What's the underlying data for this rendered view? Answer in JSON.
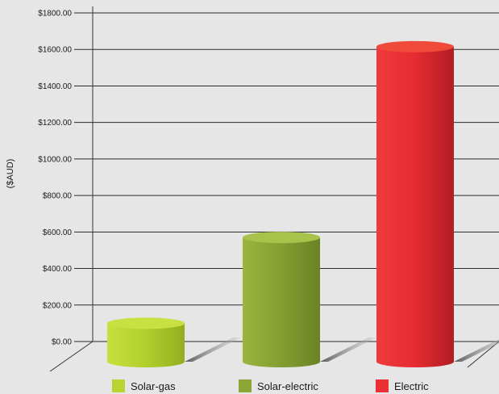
{
  "chart_data": {
    "type": "bar",
    "title": "",
    "xlabel": "",
    "ylabel": "($AUD)",
    "ylim": [
      0,
      1800
    ],
    "yticks": [
      0,
      200,
      400,
      600,
      800,
      1000,
      1200,
      1400,
      1600,
      1800
    ],
    "ytick_labels": [
      "$0.00",
      "$200.00",
      "$400.00",
      "$600.00",
      "$800.00",
      "$1000.00",
      "$1200.00",
      "$1400.00",
      "$1600.00",
      "$1800.00"
    ],
    "grid": true,
    "legend_position": "bottom",
    "categories": [
      "Solar-gas",
      "Solar-electric",
      "Electric"
    ],
    "values": [
      100,
      570,
      1615
    ],
    "colors": [
      "#b7d431",
      "#8ba634",
      "#ea3035"
    ]
  }
}
